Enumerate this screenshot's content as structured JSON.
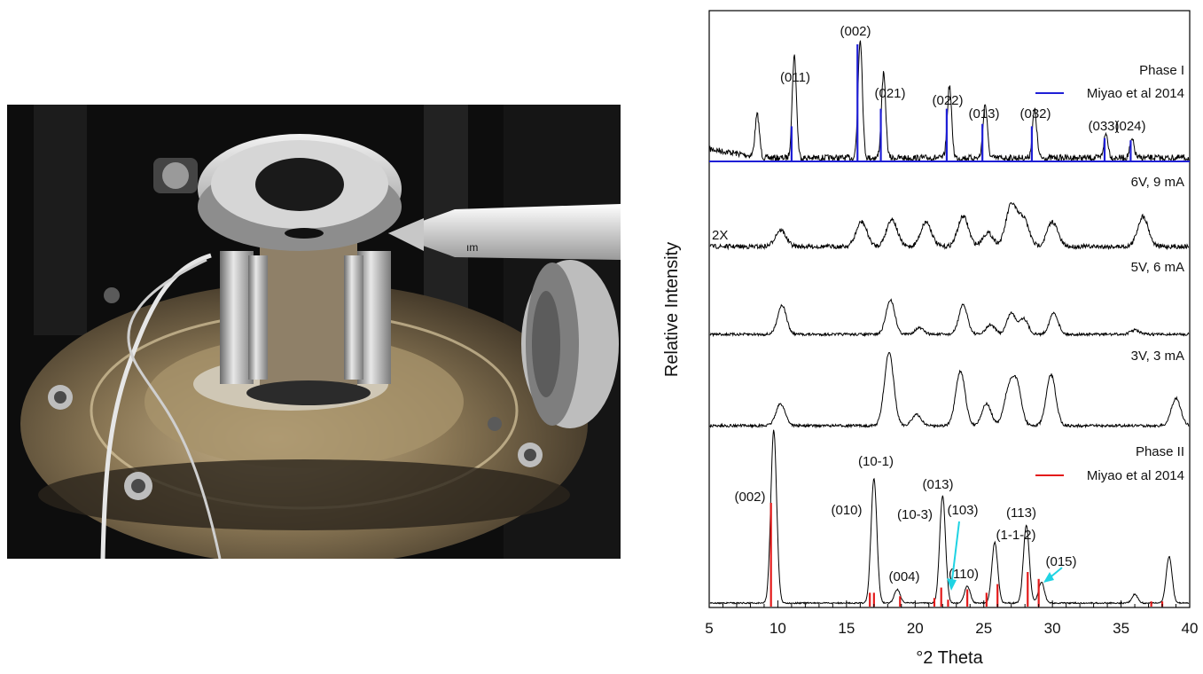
{
  "photo": {
    "visible_text": "ım"
  },
  "chart_data": {
    "type": "line",
    "xlabel": "°2 Theta",
    "ylabel": "Relative Intensity",
    "xlim": [
      5,
      40
    ],
    "x_ticks": [
      5,
      10,
      15,
      20,
      25,
      30,
      35,
      40
    ],
    "panels": [
      {
        "name": "Phase I",
        "reference_label": "Miyao et al 2014",
        "reference_color": "#1f1fd6",
        "peaks": [
          {
            "x": 8.5,
            "h": 0.35
          },
          {
            "x": 11.2,
            "h": 0.85
          },
          {
            "x": 16.0,
            "h": 1.0
          },
          {
            "x": 17.7,
            "h": 0.7
          },
          {
            "x": 22.5,
            "h": 0.6
          },
          {
            "x": 25.1,
            "h": 0.45
          },
          {
            "x": 28.7,
            "h": 0.4
          },
          {
            "x": 33.9,
            "h": 0.2
          },
          {
            "x": 35.8,
            "h": 0.15
          }
        ],
        "ref_lines": [
          {
            "x": 11.0,
            "h": 0.3
          },
          {
            "x": 15.8,
            "h": 1.0
          },
          {
            "x": 17.5,
            "h": 0.45
          },
          {
            "x": 22.3,
            "h": 0.45
          },
          {
            "x": 24.9,
            "h": 0.32
          },
          {
            "x": 28.5,
            "h": 0.3
          },
          {
            "x": 33.8,
            "h": 0.2
          },
          {
            "x": 35.7,
            "h": 0.18
          }
        ],
        "annotations": [
          {
            "text": "(011)",
            "x": 11.2
          },
          {
            "text": "(002)",
            "x": 16.0
          },
          {
            "text": "(021)",
            "x": 17.8
          },
          {
            "text": "(022)",
            "x": 22.4
          },
          {
            "text": "(013)",
            "x": 25.3
          },
          {
            "text": "(032)",
            "x": 28.7
          },
          {
            "text": "(033)",
            "x": 33.5
          },
          {
            "text": "(024)",
            "x": 35.7
          }
        ]
      },
      {
        "name": "6V, 9 mA",
        "scale_note": "2X",
        "peaks": [
          {
            "x": 10.2,
            "h": 0.3
          },
          {
            "x": 16.1,
            "h": 0.45
          },
          {
            "x": 18.3,
            "h": 0.5
          },
          {
            "x": 20.8,
            "h": 0.45
          },
          {
            "x": 23.5,
            "h": 0.55
          },
          {
            "x": 25.3,
            "h": 0.25
          },
          {
            "x": 27.0,
            "h": 0.75
          },
          {
            "x": 27.9,
            "h": 0.5
          },
          {
            "x": 30.0,
            "h": 0.45
          },
          {
            "x": 36.6,
            "h": 0.55
          }
        ]
      },
      {
        "name": "5V, 6 mA",
        "peaks": [
          {
            "x": 10.3,
            "h": 0.55
          },
          {
            "x": 18.2,
            "h": 0.65
          },
          {
            "x": 20.3,
            "h": 0.12
          },
          {
            "x": 23.5,
            "h": 0.55
          },
          {
            "x": 25.5,
            "h": 0.18
          },
          {
            "x": 27.0,
            "h": 0.4
          },
          {
            "x": 27.9,
            "h": 0.3
          },
          {
            "x": 30.1,
            "h": 0.4
          },
          {
            "x": 36.0,
            "h": 0.08
          }
        ]
      },
      {
        "name": "3V, 3 mA",
        "peaks": [
          {
            "x": 10.2,
            "h": 0.3
          },
          {
            "x": 18.1,
            "h": 1.0
          },
          {
            "x": 20.1,
            "h": 0.15
          },
          {
            "x": 23.3,
            "h": 0.75
          },
          {
            "x": 25.2,
            "h": 0.3
          },
          {
            "x": 26.8,
            "h": 0.45
          },
          {
            "x": 27.4,
            "h": 0.55
          },
          {
            "x": 29.9,
            "h": 0.7
          },
          {
            "x": 39.0,
            "h": 0.38
          }
        ]
      },
      {
        "name": "Phase II",
        "reference_label": "Miyao et al 2014",
        "reference_color": "#e31a1a",
        "peaks": [
          {
            "x": 9.7,
            "h": 1.0
          },
          {
            "x": 17.0,
            "h": 0.72
          },
          {
            "x": 18.7,
            "h": 0.08
          },
          {
            "x": 22.0,
            "h": 0.62
          },
          {
            "x": 23.8,
            "h": 0.1
          },
          {
            "x": 25.8,
            "h": 0.35
          },
          {
            "x": 28.1,
            "h": 0.45
          },
          {
            "x": 29.2,
            "h": 0.12
          },
          {
            "x": 36.0,
            "h": 0.05
          },
          {
            "x": 38.5,
            "h": 0.27
          }
        ],
        "ref_lines": [
          {
            "x": 9.5,
            "h": 0.6
          },
          {
            "x": 16.7,
            "h": 0.08
          },
          {
            "x": 17.0,
            "h": 0.08
          },
          {
            "x": 18.9,
            "h": 0.06
          },
          {
            "x": 21.4,
            "h": 0.05
          },
          {
            "x": 21.9,
            "h": 0.11
          },
          {
            "x": 22.4,
            "h": 0.04
          },
          {
            "x": 23.8,
            "h": 0.1
          },
          {
            "x": 25.2,
            "h": 0.08
          },
          {
            "x": 26.0,
            "h": 0.13
          },
          {
            "x": 28.2,
            "h": 0.2
          },
          {
            "x": 29.0,
            "h": 0.16
          },
          {
            "x": 37.2,
            "h": 0.03
          },
          {
            "x": 38.0,
            "h": 0.03
          }
        ],
        "annotations": [
          {
            "text": "(002)",
            "x": 8.3
          },
          {
            "text": "(010)",
            "x": 15.3
          },
          {
            "text": "(10-1)",
            "x": 17.5
          },
          {
            "text": "(004)",
            "x": 19.0
          },
          {
            "text": "(10-3)",
            "x": 21.2
          },
          {
            "text": "(013)",
            "x": 22.5
          },
          {
            "text": "(103)",
            "x": 23.8
          },
          {
            "text": "(110)",
            "x": 23.7
          },
          {
            "text": "(1-1-2)",
            "x": 27.3
          },
          {
            "text": "(113)",
            "x": 28.3
          },
          {
            "text": "(015)",
            "x": 30.8
          }
        ],
        "arrow_color": "#1fd3e3"
      }
    ]
  }
}
